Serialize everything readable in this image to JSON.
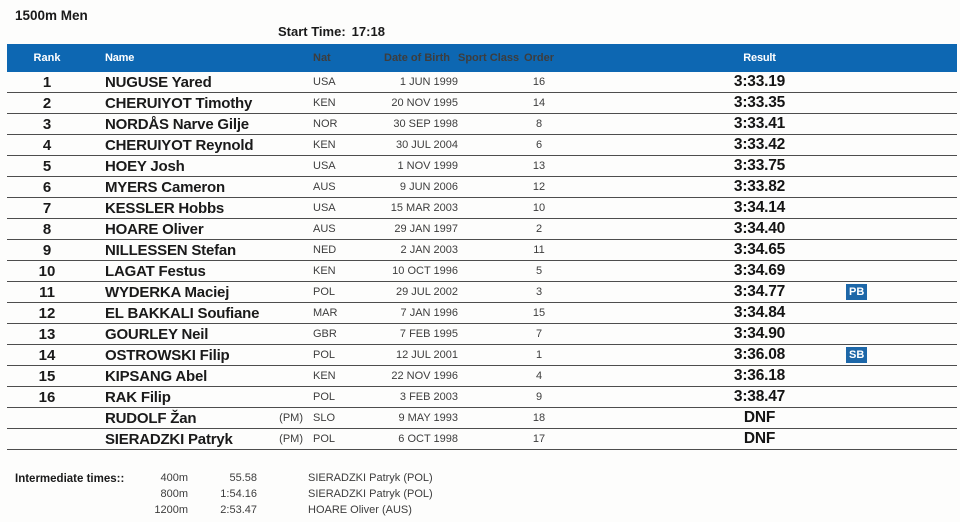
{
  "page": {
    "title": "1500m Men",
    "start_time_label": "Start Time:",
    "start_time_value": "17:18"
  },
  "colors": {
    "header_blue": "#0d67b2",
    "badge_blue": "#1d67a8"
  },
  "table": {
    "headers": {
      "rank": "Rank",
      "name": "Name",
      "pm": "",
      "nat": "Nat",
      "dob": "Date of Birth",
      "sport_class": "Sport Class",
      "order": "Order",
      "result": "Result"
    },
    "rows": [
      {
        "rank": "1",
        "name": "NUGUSE Yared",
        "pm": "",
        "nat": "USA",
        "dob": "1 JUN 1999",
        "sport_class": "",
        "order": "16",
        "result": "3:33.19",
        "badge": ""
      },
      {
        "rank": "2",
        "name": "CHERUIYOT Timothy",
        "pm": "",
        "nat": "KEN",
        "dob": "20 NOV 1995",
        "sport_class": "",
        "order": "14",
        "result": "3:33.35",
        "badge": ""
      },
      {
        "rank": "3",
        "name": "NORDÅS Narve Gilje",
        "pm": "",
        "nat": "NOR",
        "dob": "30 SEP 1998",
        "sport_class": "",
        "order": "8",
        "result": "3:33.41",
        "badge": ""
      },
      {
        "rank": "4",
        "name": "CHERUIYOT Reynold",
        "pm": "",
        "nat": "KEN",
        "dob": "30 JUL 2004",
        "sport_class": "",
        "order": "6",
        "result": "3:33.42",
        "badge": ""
      },
      {
        "rank": "5",
        "name": "HOEY Josh",
        "pm": "",
        "nat": "USA",
        "dob": "1 NOV 1999",
        "sport_class": "",
        "order": "13",
        "result": "3:33.75",
        "badge": ""
      },
      {
        "rank": "6",
        "name": "MYERS Cameron",
        "pm": "",
        "nat": "AUS",
        "dob": "9 JUN 2006",
        "sport_class": "",
        "order": "12",
        "result": "3:33.82",
        "badge": ""
      },
      {
        "rank": "7",
        "name": "KESSLER Hobbs",
        "pm": "",
        "nat": "USA",
        "dob": "15 MAR 2003",
        "sport_class": "",
        "order": "10",
        "result": "3:34.14",
        "badge": ""
      },
      {
        "rank": "8",
        "name": "HOARE Oliver",
        "pm": "",
        "nat": "AUS",
        "dob": "29 JAN 1997",
        "sport_class": "",
        "order": "2",
        "result": "3:34.40",
        "badge": ""
      },
      {
        "rank": "9",
        "name": "NILLESSEN Stefan",
        "pm": "",
        "nat": "NED",
        "dob": "2 JAN 2003",
        "sport_class": "",
        "order": "11",
        "result": "3:34.65",
        "badge": ""
      },
      {
        "rank": "10",
        "name": "LAGAT Festus",
        "pm": "",
        "nat": "KEN",
        "dob": "10 OCT 1996",
        "sport_class": "",
        "order": "5",
        "result": "3:34.69",
        "badge": ""
      },
      {
        "rank": "11",
        "name": "WYDERKA Maciej",
        "pm": "",
        "nat": "POL",
        "dob": "29 JUL 2002",
        "sport_class": "",
        "order": "3",
        "result": "3:34.77",
        "badge": "PB"
      },
      {
        "rank": "12",
        "name": "EL BAKKALI Soufiane",
        "pm": "",
        "nat": "MAR",
        "dob": "7 JAN 1996",
        "sport_class": "",
        "order": "15",
        "result": "3:34.84",
        "badge": ""
      },
      {
        "rank": "13",
        "name": "GOURLEY Neil",
        "pm": "",
        "nat": "GBR",
        "dob": "7 FEB 1995",
        "sport_class": "",
        "order": "7",
        "result": "3:34.90",
        "badge": ""
      },
      {
        "rank": "14",
        "name": "OSTROWSKI Filip",
        "pm": "",
        "nat": "POL",
        "dob": "12 JUL 2001",
        "sport_class": "",
        "order": "1",
        "result": "3:36.08",
        "badge": "SB"
      },
      {
        "rank": "15",
        "name": "KIPSANG Abel",
        "pm": "",
        "nat": "KEN",
        "dob": "22 NOV 1996",
        "sport_class": "",
        "order": "4",
        "result": "3:36.18",
        "badge": ""
      },
      {
        "rank": "16",
        "name": "RAK Filip",
        "pm": "",
        "nat": "POL",
        "dob": "3 FEB 2003",
        "sport_class": "",
        "order": "9",
        "result": "3:38.47",
        "badge": ""
      },
      {
        "rank": "",
        "name": "RUDOLF Žan",
        "pm": "(PM)",
        "nat": "SLO",
        "dob": "9 MAY 1993",
        "sport_class": "",
        "order": "18",
        "result": "DNF",
        "badge": ""
      },
      {
        "rank": "",
        "name": "SIERADZKI Patryk",
        "pm": "(PM)",
        "nat": "POL",
        "dob": "6 OCT 1998",
        "sport_class": "",
        "order": "17",
        "result": "DNF",
        "badge": ""
      }
    ]
  },
  "intermediate": {
    "label": "Intermediate times::",
    "rows": [
      {
        "distance": "400m",
        "time": "55.58",
        "athlete": "SIERADZKI Patryk (POL)"
      },
      {
        "distance": "800m",
        "time": "1:54.16",
        "athlete": "SIERADZKI Patryk (POL)"
      },
      {
        "distance": "1200m",
        "time": "2:53.47",
        "athlete": "HOARE Oliver (AUS)"
      }
    ]
  }
}
